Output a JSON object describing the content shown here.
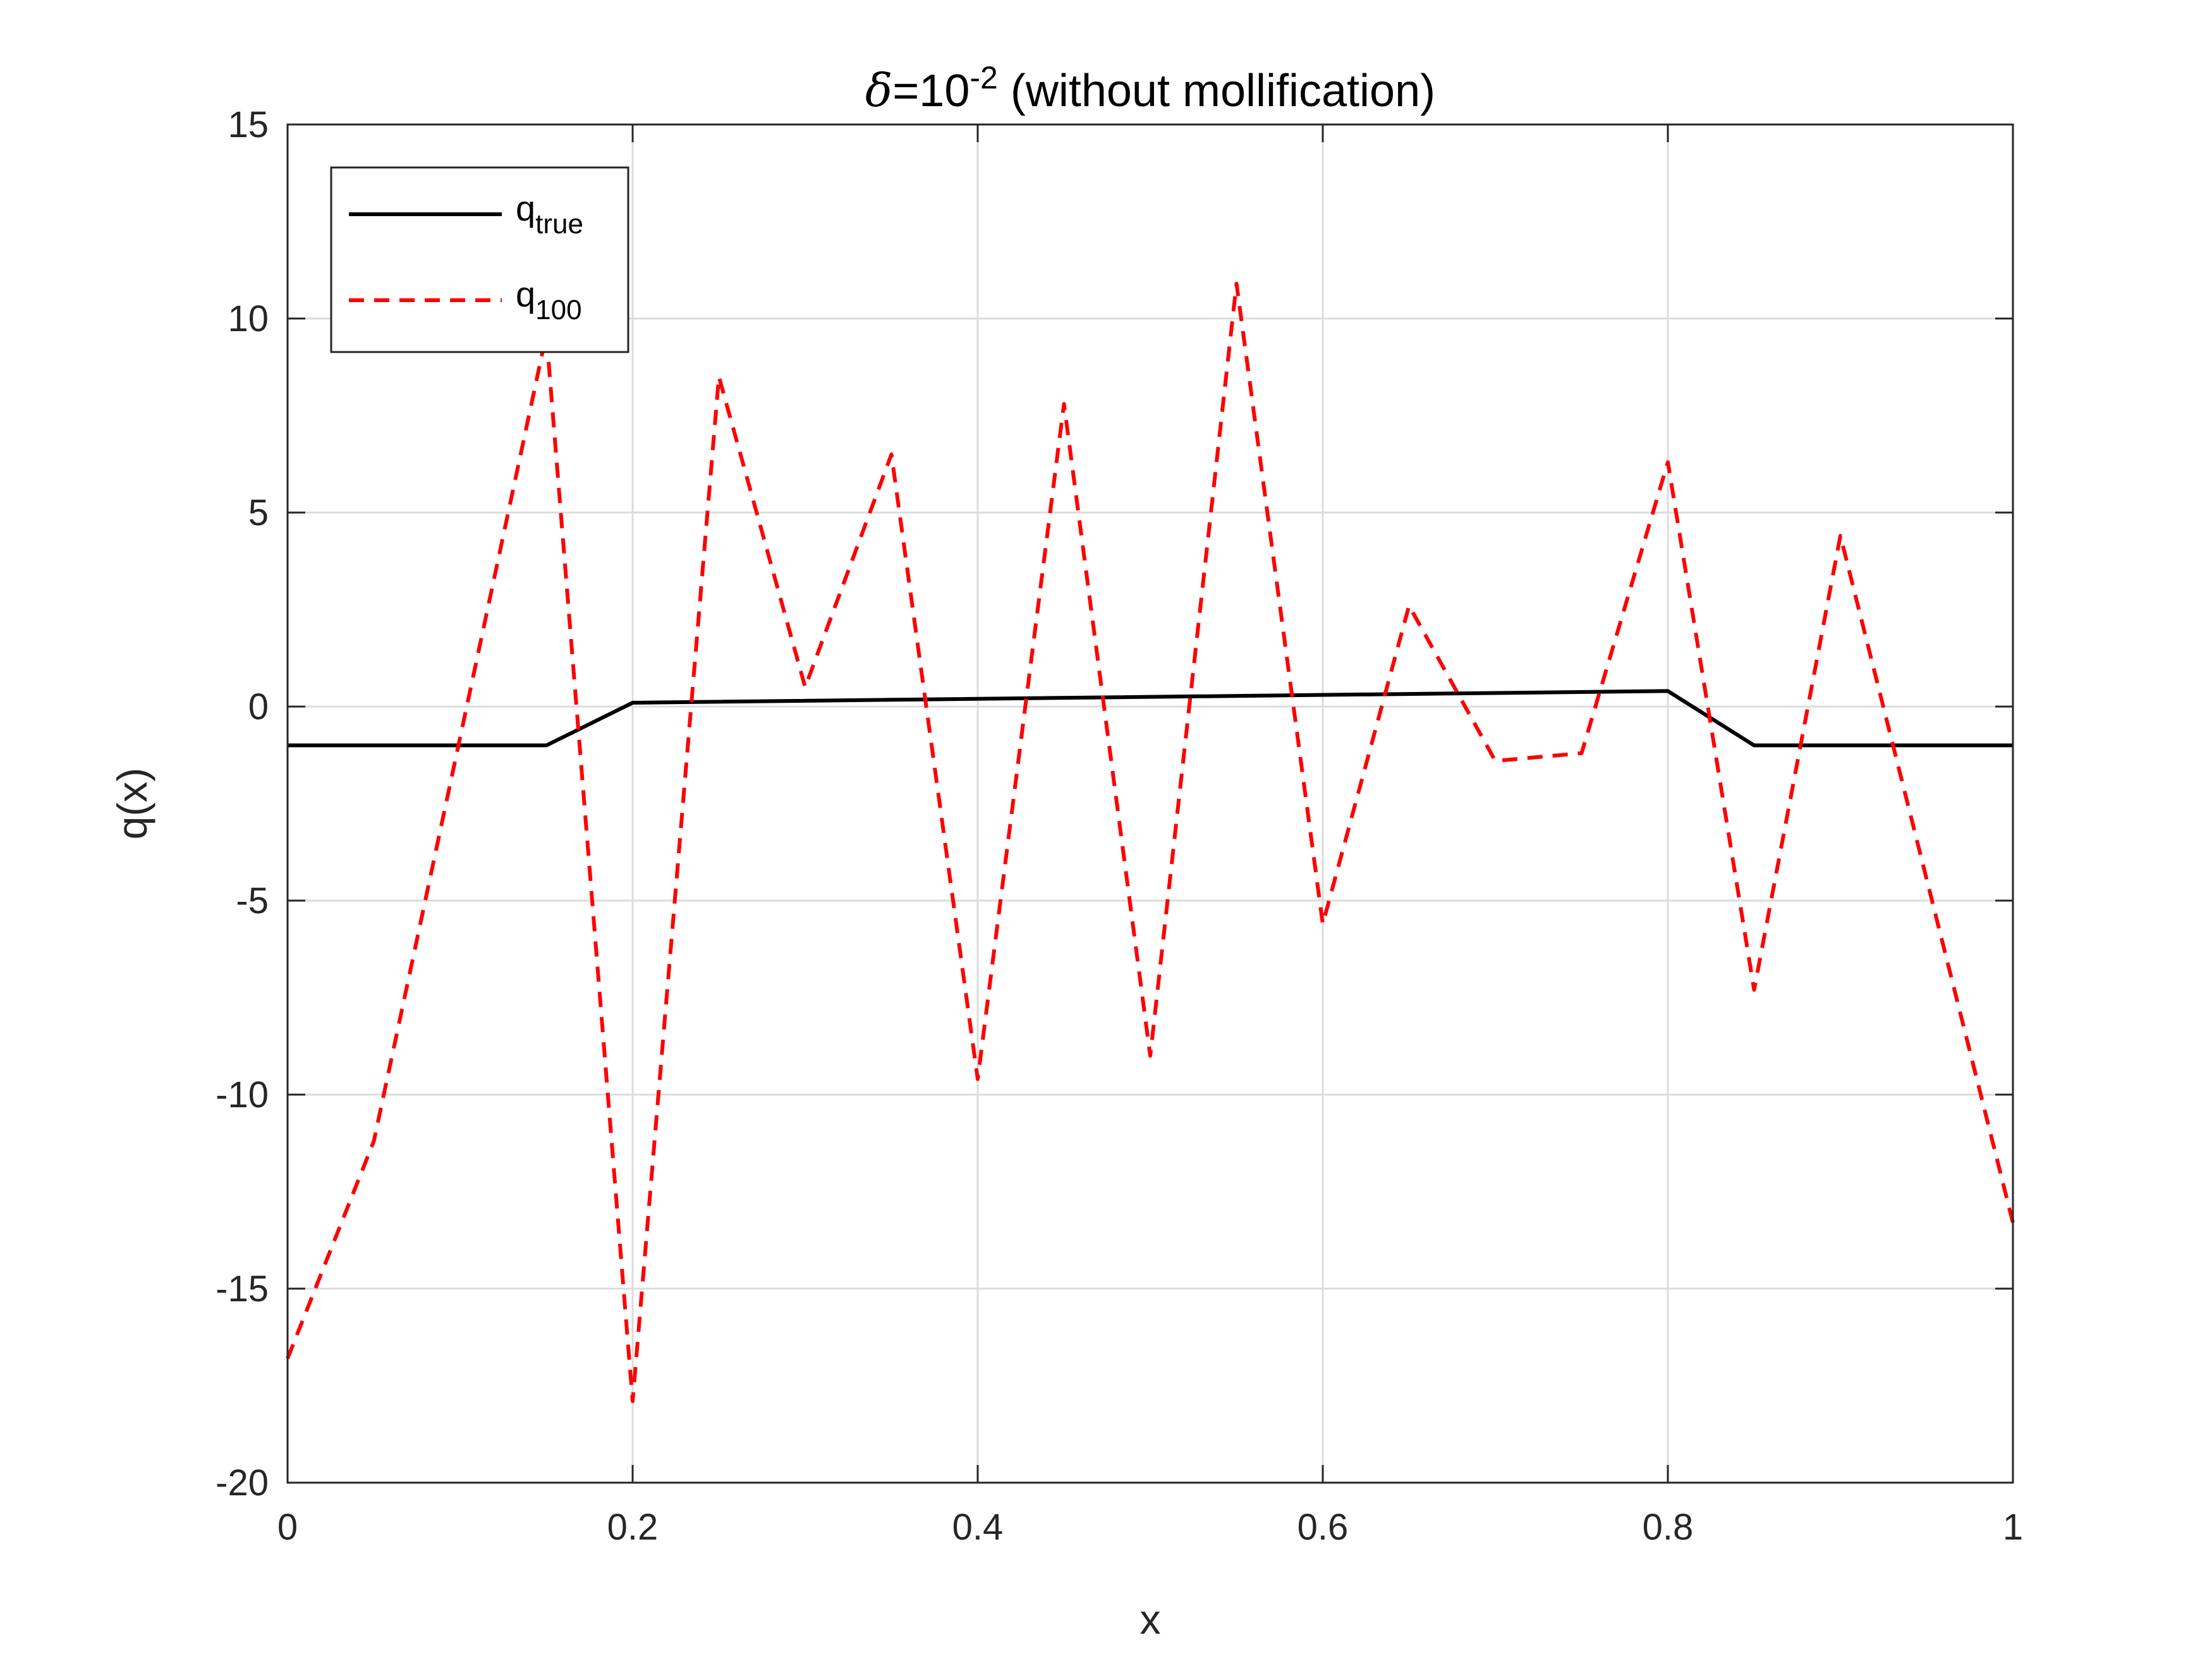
{
  "chart_data": {
    "type": "line",
    "title": {
      "delta_symbol": "δ",
      "prefix": "=10",
      "exponent": "-2",
      "suffix": " (without mollification)"
    },
    "xlabel": "x",
    "ylabel": "q(x)",
    "xlim": [
      0,
      1
    ],
    "ylim": [
      -20,
      15
    ],
    "xticks": [
      0,
      0.2,
      0.4,
      0.6,
      0.8,
      1
    ],
    "xtick_labels": [
      "0",
      "0.2",
      "0.4",
      "0.6",
      "0.8",
      "1"
    ],
    "yticks": [
      -20,
      -15,
      -10,
      -5,
      0,
      5,
      10,
      15
    ],
    "ytick_labels": [
      "-20",
      "-15",
      "-10",
      "-5",
      "0",
      "5",
      "10",
      "15"
    ],
    "grid": true,
    "legend_position": "top-left",
    "series": [
      {
        "base": "q",
        "subscript": "true",
        "color": "#000000",
        "style": "solid",
        "x": [
          0,
          0.15,
          0.2,
          0.8,
          0.85,
          1
        ],
        "y": [
          -1,
          -1,
          0.1,
          0.4,
          -1,
          -1
        ]
      },
      {
        "base": "q",
        "subscript": "100",
        "color": "#ff0000",
        "style": "dashed",
        "x": [
          0,
          0.05,
          0.15,
          0.2,
          0.25,
          0.3,
          0.35,
          0.4,
          0.45,
          0.5,
          0.55,
          0.6,
          0.65,
          0.7,
          0.75,
          0.8,
          0.85,
          0.9,
          1
        ],
        "y": [
          -16.8,
          -11.2,
          9.6,
          -17.9,
          8.5,
          0.5,
          6.5,
          -9.6,
          7.8,
          -9.0,
          10.9,
          -5.6,
          2.6,
          -1.4,
          -1.2,
          6.3,
          -7.3,
          4.4,
          -13.3
        ]
      }
    ]
  }
}
